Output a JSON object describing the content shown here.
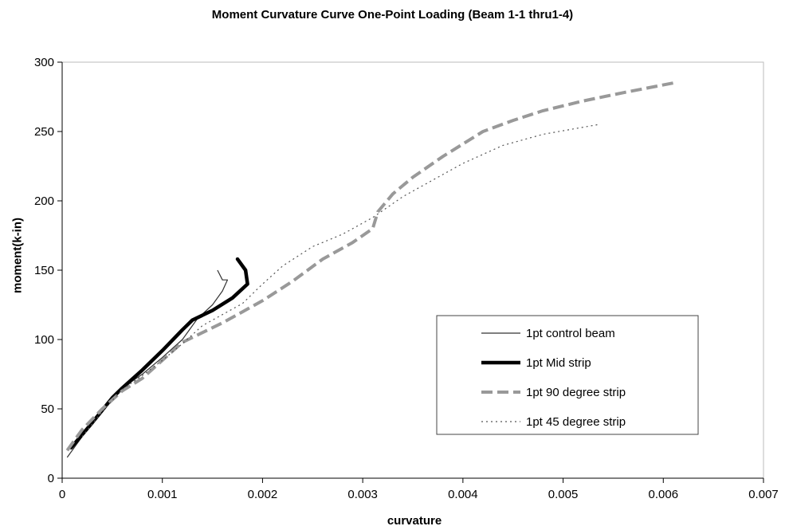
{
  "chart_data": {
    "type": "line",
    "title": "Moment Curvature Curve One-Point Loading (Beam 1-1 thru1-4)",
    "xlabel": "curvature",
    "ylabel": "moment(k-in)",
    "xlim": [
      0,
      0.007
    ],
    "ylim": [
      0,
      300
    ],
    "x_ticks": [
      "0",
      "0.001",
      "0.002",
      "0.003",
      "0.004",
      "0.005",
      "0.006",
      "0.007"
    ],
    "y_ticks": [
      "0",
      "50",
      "100",
      "150",
      "200",
      "250",
      "300"
    ],
    "grid": false,
    "legend_position": "right",
    "series": [
      {
        "name": "1pt control beam",
        "style": "thin-solid",
        "color": "#333333",
        "points": [
          [
            5e-05,
            15
          ],
          [
            0.0002,
            30
          ],
          [
            0.0004,
            50
          ],
          [
            0.0006,
            65
          ],
          [
            0.0008,
            75
          ],
          [
            0.001,
            87
          ],
          [
            0.0012,
            100
          ],
          [
            0.00135,
            115
          ],
          [
            0.0015,
            125
          ],
          [
            0.0016,
            135
          ],
          [
            0.00165,
            143
          ],
          [
            0.0016,
            143
          ],
          [
            0.00155,
            150
          ]
        ]
      },
      {
        "name": "1pt Mid strip",
        "style": "thick-solid",
        "color": "#000000",
        "points": [
          [
            9e-05,
            22
          ],
          [
            0.0003,
            40
          ],
          [
            0.0005,
            58
          ],
          [
            0.0006,
            65
          ],
          [
            0.0008,
            78
          ],
          [
            0.001,
            92
          ],
          [
            0.0012,
            107
          ],
          [
            0.0013,
            114
          ],
          [
            0.0015,
            121
          ],
          [
            0.0017,
            130
          ],
          [
            0.00185,
            140
          ],
          [
            0.00183,
            150
          ],
          [
            0.00175,
            158
          ]
        ]
      },
      {
        "name": "1pt 90 degree strip",
        "style": "thick-dashed",
        "color": "#999999",
        "points": [
          [
            5e-05,
            20
          ],
          [
            0.0002,
            35
          ],
          [
            0.0004,
            50
          ],
          [
            0.0006,
            63
          ],
          [
            0.0008,
            72
          ],
          [
            0.001,
            85
          ],
          [
            0.0012,
            98
          ],
          [
            0.0014,
            105
          ],
          [
            0.0016,
            112
          ],
          [
            0.0018,
            120
          ],
          [
            0.002,
            128
          ],
          [
            0.0023,
            142
          ],
          [
            0.0026,
            158
          ],
          [
            0.0029,
            170
          ],
          [
            0.0031,
            180
          ],
          [
            0.00315,
            192
          ],
          [
            0.0033,
            205
          ],
          [
            0.0035,
            217
          ],
          [
            0.0038,
            232
          ],
          [
            0.0042,
            250
          ],
          [
            0.0045,
            258
          ],
          [
            0.0048,
            265
          ],
          [
            0.0052,
            272
          ],
          [
            0.0056,
            278
          ],
          [
            0.0061,
            285
          ]
        ]
      },
      {
        "name": "1pt 45 degree strip",
        "style": "dotted",
        "color": "#555555",
        "points": [
          [
            0.0002,
            30
          ],
          [
            0.0004,
            48
          ],
          [
            0.0006,
            64
          ],
          [
            0.0008,
            74
          ],
          [
            0.001,
            85
          ],
          [
            0.0012,
            97
          ],
          [
            0.0014,
            110
          ],
          [
            0.0016,
            118
          ],
          [
            0.0018,
            126
          ],
          [
            0.002,
            140
          ],
          [
            0.0022,
            153
          ],
          [
            0.0025,
            167
          ],
          [
            0.0028,
            176
          ],
          [
            0.0031,
            188
          ],
          [
            0.0034,
            203
          ],
          [
            0.0037,
            215
          ],
          [
            0.004,
            227
          ],
          [
            0.0044,
            240
          ],
          [
            0.0048,
            248
          ],
          [
            0.00535,
            255
          ]
        ]
      }
    ]
  }
}
